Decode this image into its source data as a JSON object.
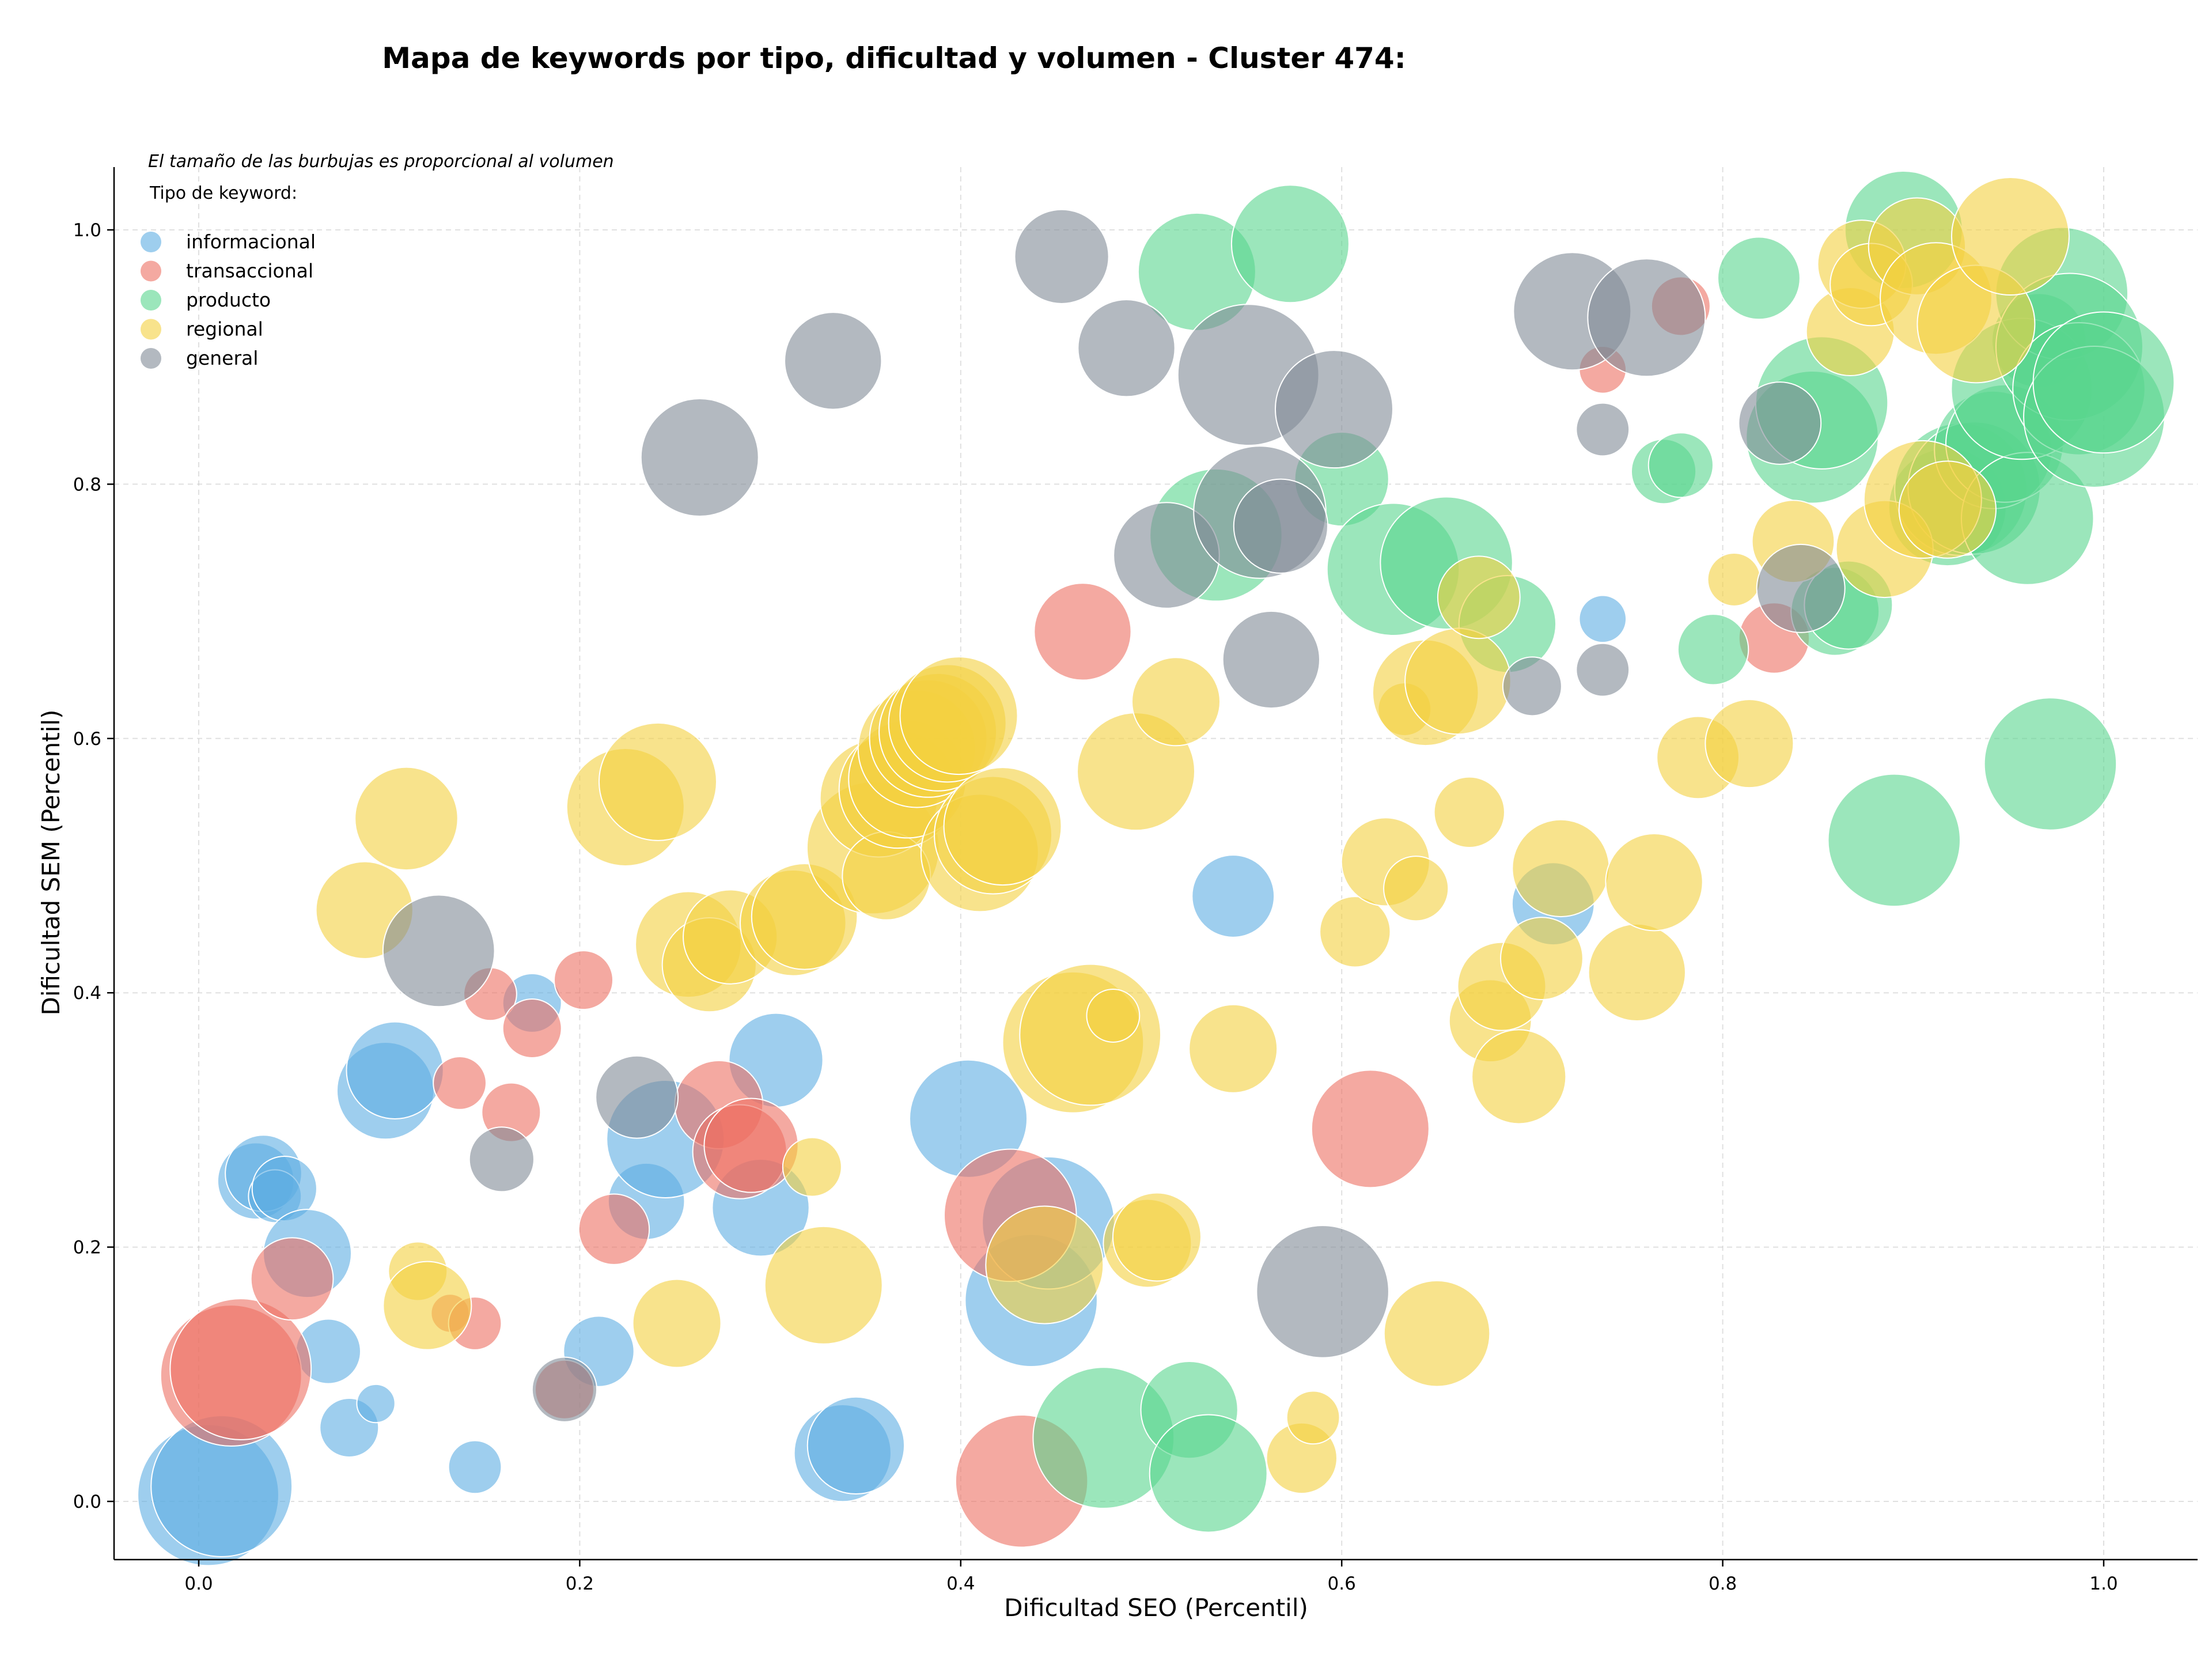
{
  "chart_data": {
    "type": "scatter",
    "title": "Mapa de keywords por tipo, dificultad y volumen - Cluster 474:",
    "xlabel": "Dificultad SEO (Percentil)",
    "ylabel": "Dificultad SEM (Percentil)",
    "note": "El tamaño de las burbujas es proporcional al volumen",
    "legend_title": "Tipo de keyword:",
    "legend_position": "top-left",
    "grid": true,
    "xlim": [
      -0.045,
      1.048
    ],
    "ylim": [
      -0.045,
      1.048
    ],
    "xticks": [
      "0.0",
      "0.2",
      "0.4",
      "0.6",
      "0.8",
      "1.0"
    ],
    "yticks": [
      "0.0",
      "0.2",
      "0.4",
      "0.6",
      "0.8",
      "1.0"
    ],
    "size_note": "size values are relative bubble sizes (proportional to volume)",
    "series": [
      {
        "name": "informacional",
        "color": "#5DADE2",
        "points": [
          [
            0.005,
            0.005,
            48
          ],
          [
            0.012,
            0.012,
            48
          ],
          [
            0.03,
            0.252,
            26
          ],
          [
            0.034,
            0.258,
            26
          ],
          [
            0.04,
            0.24,
            18
          ],
          [
            0.045,
            0.246,
            22
          ],
          [
            0.057,
            0.195,
            30
          ],
          [
            0.068,
            0.118,
            22
          ],
          [
            0.079,
            0.058,
            20
          ],
          [
            0.093,
            0.077,
            13
          ],
          [
            0.098,
            0.323,
            33
          ],
          [
            0.103,
            0.339,
            33
          ],
          [
            0.145,
            0.027,
            18
          ],
          [
            0.175,
            0.392,
            20
          ],
          [
            0.21,
            0.118,
            24
          ],
          [
            0.235,
            0.236,
            26
          ],
          [
            0.245,
            0.285,
            40
          ],
          [
            0.295,
            0.231,
            33
          ],
          [
            0.303,
            0.347,
            32
          ],
          [
            0.338,
            0.038,
            33
          ],
          [
            0.345,
            0.044,
            33
          ],
          [
            0.404,
            0.301,
            40
          ],
          [
            0.437,
            0.158,
            45
          ],
          [
            0.446,
            0.219,
            45
          ],
          [
            0.543,
            0.476,
            28
          ],
          [
            0.711,
            0.47,
            28
          ],
          [
            0.737,
            0.694,
            16
          ]
        ]
      },
      {
        "name": "transaccional",
        "color": "#EC7063",
        "points": [
          [
            0.017,
            0.099,
            48
          ],
          [
            0.022,
            0.104,
            48
          ],
          [
            0.049,
            0.175,
            28
          ],
          [
            0.132,
            0.148,
            13
          ],
          [
            0.137,
            0.329,
            18
          ],
          [
            0.145,
            0.14,
            18
          ],
          [
            0.153,
            0.399,
            18
          ],
          [
            0.164,
            0.306,
            20
          ],
          [
            0.175,
            0.372,
            20
          ],
          [
            0.192,
            0.088,
            20
          ],
          [
            0.202,
            0.41,
            20
          ],
          [
            0.218,
            0.214,
            24
          ],
          [
            0.273,
            0.312,
            30
          ],
          [
            0.284,
            0.275,
            32
          ],
          [
            0.29,
            0.28,
            32
          ],
          [
            0.426,
            0.225,
            45
          ],
          [
            0.432,
            0.016,
            45
          ],
          [
            0.464,
            0.684,
            33
          ],
          [
            0.615,
            0.293,
            40
          ],
          [
            0.737,
            0.89,
            16
          ],
          [
            0.778,
            0.94,
            20
          ],
          [
            0.827,
            0.679,
            24
          ]
        ]
      },
      {
        "name": "producto",
        "color": "#58D68D",
        "points": [
          [
            0.475,
            0.05,
            48
          ],
          [
            0.52,
            0.072,
            33
          ],
          [
            0.524,
            0.967,
            40
          ],
          [
            0.53,
            0.022,
            40
          ],
          [
            0.534,
            0.76,
            45
          ],
          [
            0.573,
            0.989,
            40
          ],
          [
            0.6,
            0.804,
            32
          ],
          [
            0.627,
            0.733,
            45
          ],
          [
            0.655,
            0.738,
            45
          ],
          [
            0.687,
            0.69,
            33
          ],
          [
            0.769,
            0.81,
            22
          ],
          [
            0.778,
            0.815,
            22
          ],
          [
            0.795,
            0.67,
            24
          ],
          [
            0.819,
            0.962,
            28
          ],
          [
            0.847,
            0.837,
            45
          ],
          [
            0.852,
            0.864,
            45
          ],
          [
            0.859,
            0.7,
            30
          ],
          [
            0.866,
            0.705,
            30
          ],
          [
            0.89,
            0.52,
            45
          ],
          [
            0.895,
            1.0,
            40
          ],
          [
            0.918,
            0.782,
            40
          ],
          [
            0.925,
            0.796,
            45
          ],
          [
            0.932,
            0.797,
            45
          ],
          [
            0.942,
            0.827,
            40
          ],
          [
            0.948,
            0.832,
            40
          ],
          [
            0.96,
            0.773,
            45
          ],
          [
            0.966,
            0.913,
            32
          ],
          [
            0.957,
            0.875,
            48
          ],
          [
            0.972,
            0.58,
            45
          ],
          [
            0.978,
            0.95,
            45
          ],
          [
            0.982,
            0.908,
            50
          ],
          [
            0.987,
            0.875,
            45
          ],
          [
            0.995,
            0.853,
            48
          ],
          [
            1.0,
            0.88,
            48
          ]
        ]
      },
      {
        "name": "regional",
        "color": "#F4D03F",
        "points": [
          [
            0.087,
            0.465,
            33
          ],
          [
            0.109,
            0.537,
            35
          ],
          [
            0.115,
            0.181,
            20
          ],
          [
            0.12,
            0.154,
            30
          ],
          [
            0.224,
            0.546,
            40
          ],
          [
            0.241,
            0.566,
            40
          ],
          [
            0.251,
            0.14,
            30
          ],
          [
            0.257,
            0.438,
            36
          ],
          [
            0.268,
            0.422,
            32
          ],
          [
            0.279,
            0.444,
            32
          ],
          [
            0.312,
            0.455,
            36
          ],
          [
            0.318,
            0.46,
            36
          ],
          [
            0.322,
            0.263,
            20
          ],
          [
            0.328,
            0.17,
            40
          ],
          [
            0.354,
            0.514,
            45
          ],
          [
            0.357,
            0.553,
            40
          ],
          [
            0.361,
            0.492,
            30
          ],
          [
            0.367,
            0.56,
            40
          ],
          [
            0.372,
            0.568,
            40
          ],
          [
            0.377,
            0.592,
            40
          ],
          [
            0.383,
            0.6,
            40
          ],
          [
            0.388,
            0.605,
            40
          ],
          [
            0.393,
            0.612,
            40
          ],
          [
            0.399,
            0.618,
            40
          ],
          [
            0.41,
            0.51,
            40
          ],
          [
            0.417,
            0.524,
            40
          ],
          [
            0.422,
            0.531,
            40
          ],
          [
            0.444,
            0.186,
            40
          ],
          [
            0.459,
            0.361,
            48
          ],
          [
            0.468,
            0.367,
            48
          ],
          [
            0.48,
            0.382,
            18
          ],
          [
            0.492,
            0.574,
            40
          ],
          [
            0.498,
            0.203,
            30
          ],
          [
            0.503,
            0.208,
            30
          ],
          [
            0.513,
            0.629,
            30
          ],
          [
            0.543,
            0.356,
            30
          ],
          [
            0.579,
            0.034,
            24
          ],
          [
            0.585,
            0.066,
            18
          ],
          [
            0.607,
            0.448,
            24
          ],
          [
            0.623,
            0.503,
            30
          ],
          [
            0.633,
            0.623,
            18
          ],
          [
            0.639,
            0.482,
            22
          ],
          [
            0.644,
            0.636,
            36
          ],
          [
            0.65,
            0.132,
            36
          ],
          [
            0.661,
            0.645,
            36
          ],
          [
            0.667,
            0.542,
            24
          ],
          [
            0.672,
            0.711,
            28
          ],
          [
            0.678,
            0.378,
            28
          ],
          [
            0.684,
            0.405,
            30
          ],
          [
            0.693,
            0.334,
            32
          ],
          [
            0.705,
            0.427,
            28
          ],
          [
            0.715,
            0.498,
            33
          ],
          [
            0.755,
            0.416,
            33
          ],
          [
            0.764,
            0.487,
            33
          ],
          [
            0.787,
            0.585,
            28
          ],
          [
            0.806,
            0.725,
            18
          ],
          [
            0.814,
            0.596,
            30
          ],
          [
            0.837,
            0.755,
            28
          ],
          [
            0.867,
            0.92,
            30
          ],
          [
            0.873,
            0.973,
            30
          ],
          [
            0.878,
            0.957,
            28
          ],
          [
            0.885,
            0.749,
            33
          ],
          [
            0.902,
            0.987,
            33
          ],
          [
            0.905,
            0.788,
            40
          ],
          [
            0.912,
            0.946,
            38
          ],
          [
            0.918,
            0.78,
            33
          ],
          [
            0.933,
            0.926,
            40
          ],
          [
            0.951,
            0.995,
            40
          ]
        ]
      },
      {
        "name": "general",
        "color": "#808B96",
        "points": [
          [
            0.126,
            0.433,
            38
          ],
          [
            0.159,
            0.269,
            22
          ],
          [
            0.192,
            0.088,
            22
          ],
          [
            0.23,
            0.318,
            28
          ],
          [
            0.263,
            0.821,
            40
          ],
          [
            0.333,
            0.897,
            33
          ],
          [
            0.453,
            0.979,
            32
          ],
          [
            0.487,
            0.907,
            33
          ],
          [
            0.508,
            0.744,
            36
          ],
          [
            0.551,
            0.886,
            48
          ],
          [
            0.557,
            0.778,
            45
          ],
          [
            0.563,
            0.662,
            33
          ],
          [
            0.568,
            0.767,
            32
          ],
          [
            0.59,
            0.165,
            45
          ],
          [
            0.596,
            0.859,
            40
          ],
          [
            0.7,
            0.641,
            20
          ],
          [
            0.721,
            0.936,
            40
          ],
          [
            0.737,
            0.654,
            18
          ],
          [
            0.737,
            0.843,
            18
          ],
          [
            0.76,
            0.931,
            40
          ],
          [
            0.83,
            0.848,
            28
          ],
          [
            0.841,
            0.718,
            30
          ]
        ]
      }
    ]
  }
}
